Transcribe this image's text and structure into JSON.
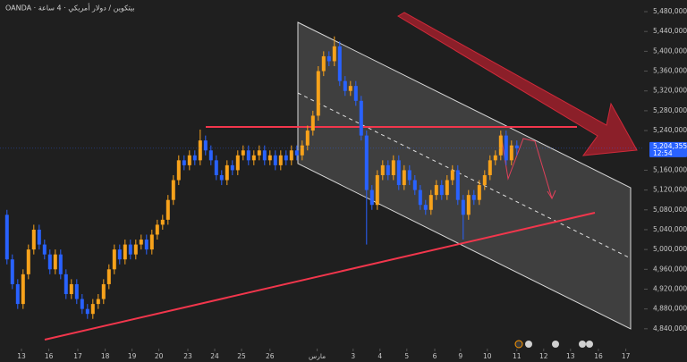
{
  "chart_data": {
    "type": "candlestick",
    "title": "OANDA · بيتكوين / دولار أمريكي · 4 ساعة",
    "up_color": "#f7a21b",
    "down_color": "#2962ff",
    "open": [
      5070000,
      4980000,
      4930000,
      4890000,
      4950000,
      5000000,
      5040000,
      5010000,
      4990000,
      4960000,
      4990000,
      4950000,
      4910000,
      4930000,
      4900000,
      4880000,
      4870000,
      4890000,
      4900000,
      4930000,
      4960000,
      5000000,
      4980000,
      5010000,
      4990000,
      5010000,
      5020000,
      5000000,
      5030000,
      5050000,
      5060000,
      5100000,
      5140000,
      5180000,
      5170000,
      5190000,
      5180000,
      5220000,
      5200000,
      5180000,
      5150000,
      5140000,
      5170000,
      5160000,
      5190000,
      5200000,
      5180000,
      5190000,
      5200000,
      5180000,
      5190000,
      5170000,
      5190000,
      5180000,
      5200000,
      5190000,
      5210000,
      5240000,
      5270000,
      5360000,
      5390000,
      5380000,
      5410000,
      5340000,
      5320000,
      5330000,
      5300000,
      5230000,
      5120000,
      5090000,
      5150000,
      5170000,
      5150000,
      5180000,
      5130000,
      5160000,
      5140000,
      5120000,
      5090000,
      5080000,
      5110000,
      5130000,
      5110000,
      5140000,
      5160000,
      5100000,
      5070000,
      5110000,
      5100000,
      5130000,
      5150000,
      5180000,
      5190000,
      5230000,
      5180000,
      5210000
    ],
    "high": [
      5080000,
      4990000,
      4940000,
      4960000,
      5010000,
      5050000,
      5050000,
      5020000,
      5000000,
      5000000,
      5000000,
      4960000,
      4940000,
      4940000,
      4910000,
      4890000,
      4900000,
      4910000,
      4940000,
      4970000,
      5010000,
      5010000,
      5020000,
      5020000,
      5020000,
      5030000,
      5030000,
      5040000,
      5060000,
      5070000,
      5110000,
      5150000,
      5190000,
      5190000,
      5200000,
      5200000,
      5242000,
      5230000,
      5210000,
      5190000,
      5160000,
      5180000,
      5180000,
      5200000,
      5210000,
      5210000,
      5200000,
      5210000,
      5210000,
      5200000,
      5200000,
      5200000,
      5200000,
      5210000,
      5210000,
      5220000,
      5250000,
      5280000,
      5370000,
      5400000,
      5400000,
      5430000,
      5420000,
      5350000,
      5340000,
      5340000,
      5310000,
      5240000,
      5130000,
      5160000,
      5180000,
      5180000,
      5190000,
      5190000,
      5170000,
      5170000,
      5150000,
      5130000,
      5100000,
      5120000,
      5140000,
      5140000,
      5150000,
      5170000,
      5170000,
      5110000,
      5120000,
      5120000,
      5140000,
      5160000,
      5190000,
      5200000,
      5240000,
      5240000,
      5220000,
      5220000
    ],
    "low": [
      4970000,
      4920000,
      4880000,
      4880000,
      4940000,
      4990000,
      5000000,
      4980000,
      4950000,
      4950000,
      4940000,
      4900000,
      4900000,
      4890000,
      4870000,
      4860000,
      4860000,
      4880000,
      4890000,
      4920000,
      4950000,
      4970000,
      4970000,
      4980000,
      4980000,
      5000000,
      4990000,
      4990000,
      5020000,
      5040000,
      5050000,
      5090000,
      5130000,
      5160000,
      5160000,
      5170000,
      5170000,
      5190000,
      5170000,
      5140000,
      5130000,
      5130000,
      5150000,
      5150000,
      5180000,
      5170000,
      5170000,
      5180000,
      5170000,
      5170000,
      5160000,
      5160000,
      5170000,
      5170000,
      5180000,
      5180000,
      5200000,
      5230000,
      5260000,
      5350000,
      5370000,
      5370000,
      5330000,
      5310000,
      5310000,
      5290000,
      5220000,
      5010000,
      5080000,
      5080000,
      5140000,
      5140000,
      5140000,
      5120000,
      5120000,
      5130000,
      5110000,
      5080000,
      5070000,
      5070000,
      5100000,
      5100000,
      5100000,
      5130000,
      5090000,
      5020000,
      5060000,
      5090000,
      5090000,
      5120000,
      5140000,
      5170000,
      5180000,
      5170000,
      5170000,
      5190000
    ],
    "close": [
      4980000,
      4930000,
      4890000,
      4950000,
      5000000,
      5040000,
      5010000,
      4990000,
      4960000,
      4990000,
      4950000,
      4910000,
      4930000,
      4900000,
      4880000,
      4870000,
      4890000,
      4900000,
      4930000,
      4960000,
      5000000,
      4980000,
      5010000,
      4990000,
      5010000,
      5020000,
      5000000,
      5030000,
      5050000,
      5060000,
      5100000,
      5140000,
      5180000,
      5170000,
      5190000,
      5180000,
      5220000,
      5200000,
      5180000,
      5150000,
      5140000,
      5170000,
      5160000,
      5190000,
      5200000,
      5180000,
      5190000,
      5200000,
      5180000,
      5190000,
      5170000,
      5190000,
      5180000,
      5200000,
      5190000,
      5210000,
      5240000,
      5270000,
      5360000,
      5390000,
      5380000,
      5410000,
      5340000,
      5320000,
      5330000,
      5300000,
      5230000,
      5120000,
      5090000,
      5150000,
      5170000,
      5150000,
      5180000,
      5130000,
      5160000,
      5140000,
      5120000,
      5090000,
      5080000,
      5110000,
      5130000,
      5110000,
      5140000,
      5160000,
      5100000,
      5070000,
      5110000,
      5100000,
      5130000,
      5150000,
      5180000,
      5190000,
      5230000,
      5180000,
      5210000,
      5204355
    ],
    "last_price_label": "5,204,355",
    "last_time_label": "12:54",
    "xlim": [
      -1.3,
      118.7
    ],
    "ylim": [
      4800000,
      5503500
    ],
    "yticks": [
      {
        "value": 5480000,
        "label": "5,480,000"
      },
      {
        "value": 5440000,
        "label": "5,440,000"
      },
      {
        "value": 5400000,
        "label": "5,400,000"
      },
      {
        "value": 5360000,
        "label": "5,360,000"
      },
      {
        "value": 5320000,
        "label": "5,320,000"
      },
      {
        "value": 5280000,
        "label": "5,280,000"
      },
      {
        "value": 5240000,
        "label": "5,240,000"
      },
      {
        "value": 5160000,
        "label": "5,160,000"
      },
      {
        "value": 5120000,
        "label": "5,120,000"
      },
      {
        "value": 5080000,
        "label": "5,080,000"
      },
      {
        "value": 5040000,
        "label": "5,040,000"
      },
      {
        "value": 5000000,
        "label": "5,000,000"
      },
      {
        "value": 4960000,
        "label": "4,960,000"
      },
      {
        "value": 4920000,
        "label": "4,920,000"
      },
      {
        "value": 4880000,
        "label": "4,880,000"
      },
      {
        "value": 4840000,
        "label": "4,840,000"
      }
    ],
    "xticks": [
      {
        "value": 2.7,
        "label": "13"
      },
      {
        "value": 7.8,
        "label": "16"
      },
      {
        "value": 13.2,
        "label": "17"
      },
      {
        "value": 18.3,
        "label": "18"
      },
      {
        "value": 23.3,
        "label": "19"
      },
      {
        "value": 28.3,
        "label": "20"
      },
      {
        "value": 33.7,
        "label": "23"
      },
      {
        "value": 38.7,
        "label": "24"
      },
      {
        "value": 43.7,
        "label": "25"
      },
      {
        "value": 49,
        "label": "26"
      },
      {
        "value": 57.8,
        "label": "مارس"
      },
      {
        "value": 64.5,
        "label": "3"
      },
      {
        "value": 69.5,
        "label": "4"
      },
      {
        "value": 74.5,
        "label": "5"
      },
      {
        "value": 79.7,
        "label": "6"
      },
      {
        "value": 84.5,
        "label": "9"
      },
      {
        "value": 89.5,
        "label": "10"
      },
      {
        "value": 95,
        "label": "11"
      },
      {
        "value": 100,
        "label": "12"
      },
      {
        "value": 105,
        "label": "13"
      },
      {
        "value": 110.2,
        "label": "16"
      },
      {
        "value": 115.3,
        "label": "17"
      }
    ]
  }
}
